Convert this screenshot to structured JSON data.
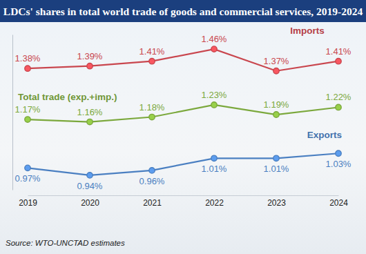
{
  "chart_data": {
    "type": "line",
    "title": "LDCs' shares in total world trade of goods and commercial services, 2019-2024",
    "annotations": [
      "Source: WTO-UNCTAD estimates"
    ],
    "categories": [
      "2019",
      "2020",
      "2021",
      "2022",
      "2023",
      "2024"
    ],
    "series": [
      {
        "name": "Imports",
        "color": "#c9464e",
        "marker": "circle",
        "values": [
          1.38,
          1.39,
          1.41,
          1.46,
          1.37,
          1.41
        ],
        "value_labels": [
          "1.38%",
          "1.39%",
          "1.41%",
          "1.46%",
          "1.37%",
          "1.41%"
        ]
      },
      {
        "name": "Total trade (exp.+imp.)",
        "color": "#7ba83c",
        "marker": "circle",
        "values": [
          1.17,
          1.16,
          1.18,
          1.23,
          1.19,
          1.22
        ],
        "value_labels": [
          "1.17%",
          "1.16%",
          "1.18%",
          "1.23%",
          "1.19%",
          "1.22%"
        ]
      },
      {
        "name": "Exports",
        "color": "#4a7fc1",
        "marker": "circle",
        "values": [
          0.97,
          0.94,
          0.96,
          1.01,
          1.01,
          1.03
        ],
        "value_labels": [
          "0.97%",
          "0.94%",
          "0.96%",
          "1.01%",
          "1.01%",
          "1.03%"
        ]
      }
    ],
    "ylim": [
      0.88,
      1.52
    ],
    "yticks": [],
    "grid": false,
    "data_labels": true,
    "tick_labels": "x"
  }
}
